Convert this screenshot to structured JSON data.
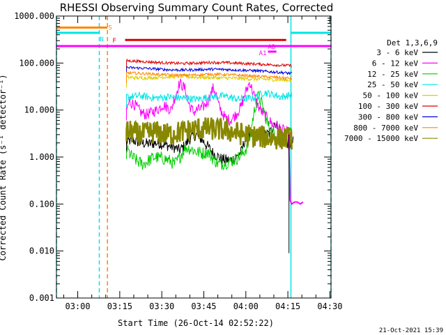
{
  "chart_data": {
    "type": "line",
    "title": "RHESSI Observing Summary Count Rates, Corrected",
    "xlabel": "Start Time (26-Oct-14 02:52:22)",
    "ylabel": "Corrected Count Rate (s⁻¹ detector⁻¹)",
    "y_scale": "log",
    "ylim": [
      0.001,
      1000
    ],
    "xlim_minutes_after_start": [
      0,
      98
    ],
    "x_tick_labels": [
      "03:00",
      "03:15",
      "03:30",
      "03:45",
      "04:00",
      "04:15",
      "04:30"
    ],
    "x_tick_minutes_after_start": [
      7.6,
      22.6,
      37.6,
      52.6,
      67.6,
      82.6,
      97.6
    ],
    "y_tick_labels": [
      "1000.000",
      "100.000",
      "10.000",
      "1.000",
      "0.100",
      "0.010",
      "0.001"
    ],
    "y_tick_values": [
      1000,
      100,
      10,
      1,
      0.1,
      0.01,
      0.001
    ],
    "legend_title": "Det 1,3,6,9",
    "legend_position": "right",
    "series": [
      {
        "name": "3 - 6 keV",
        "color": "#000000",
        "t": [
          25,
          27,
          30,
          33,
          36,
          39,
          42,
          44,
          45,
          46,
          47,
          48,
          50,
          53,
          56,
          59,
          62,
          64,
          66,
          67,
          68,
          70,
          71,
          72,
          74,
          76,
          77,
          78,
          80,
          82,
          83,
          84,
          84.5
        ],
        "y": [
          2.1,
          2.3,
          2.0,
          1.9,
          2.0,
          1.8,
          1.6,
          1.4,
          1.6,
          1.8,
          2.2,
          2.6,
          3.0,
          2.0,
          1.2,
          0.9,
          0.85,
          0.95,
          1.3,
          2.1,
          2.6,
          2.9,
          3.1,
          3.0,
          2.9,
          3.2,
          4.0,
          5.5,
          3.5,
          2.2,
          1.8,
          2.0,
          2.1
        ]
      },
      {
        "name": "6 - 12 keV",
        "color": "#ff00ff",
        "t": [
          25,
          26,
          28,
          30,
          32,
          34,
          36,
          38,
          40,
          41,
          42,
          44,
          46,
          47,
          48,
          49,
          50,
          52,
          54,
          56,
          57,
          58,
          60,
          62,
          64,
          66,
          67,
          68,
          69,
          70,
          72,
          74,
          76,
          77,
          78,
          80,
          82,
          83,
          84
        ],
        "y": [
          10,
          15,
          13,
          9,
          8,
          9,
          10,
          13,
          11,
          10,
          17,
          38,
          28,
          15,
          11,
          9,
          10,
          11,
          15,
          30,
          22,
          12,
          7,
          6,
          8,
          12,
          20,
          28,
          40,
          25,
          12,
          8,
          6,
          5,
          5,
          4,
          3.5,
          3,
          3
        ]
      },
      {
        "name": "12 - 25 keV",
        "color": "#00cc00",
        "t": [
          25,
          27,
          29,
          31,
          33,
          35,
          37,
          39,
          41,
          42,
          43,
          44,
          46,
          48,
          50,
          52,
          54,
          56,
          58,
          60,
          62,
          64,
          66,
          68,
          69,
          70,
          71,
          72,
          73,
          74,
          75,
          76,
          78,
          80,
          82,
          84
        ],
        "y": [
          1.5,
          1.0,
          0.8,
          0.7,
          0.85,
          1.0,
          0.95,
          0.9,
          0.8,
          0.7,
          0.8,
          1.0,
          1.6,
          1.5,
          1.3,
          1.2,
          1.3,
          0.9,
          0.7,
          0.75,
          0.8,
          0.9,
          1.1,
          1.6,
          2.5,
          6,
          12,
          20,
          15,
          10,
          6,
          4,
          3,
          3.2,
          3.0,
          3.1
        ]
      },
      {
        "name": "25 - 50 keV",
        "color": "#00e5e5",
        "t": [
          25,
          30,
          35,
          40,
          45,
          50,
          55,
          60,
          65,
          70,
          72,
          74,
          76,
          78,
          80,
          82,
          84
        ],
        "y": [
          19,
          20,
          18,
          19,
          18,
          17,
          19,
          20,
          17,
          18,
          20,
          24,
          22,
          21,
          19,
          20,
          21
        ]
      },
      {
        "name": "50 - 100 keV",
        "color": "#ddcc00",
        "t": [
          25,
          30,
          35,
          40,
          45,
          50,
          55,
          60,
          65,
          70,
          75,
          80,
          84
        ],
        "y": [
          50,
          48,
          49,
          51,
          52,
          50,
          49,
          48,
          47,
          46,
          45,
          44,
          43
        ]
      },
      {
        "name": "100 - 300 keV",
        "color": "#dd0000",
        "t": [
          25,
          30,
          35,
          40,
          45,
          50,
          55,
          60,
          65,
          70,
          75,
          80,
          84
        ],
        "y": [
          112,
          108,
          104,
          100,
          98,
          100,
          103,
          102,
          99,
          96,
          93,
          90,
          88
        ]
      },
      {
        "name": "300 - 800 keV",
        "color": "#0000dd",
        "t": [
          25,
          30,
          35,
          40,
          45,
          50,
          55,
          60,
          65,
          70,
          75,
          80,
          84
        ],
        "y": [
          80,
          78,
          75,
          72,
          71,
          72,
          74,
          73,
          71,
          69,
          66,
          63,
          60
        ]
      },
      {
        "name": "800 - 7000 keV",
        "color": "#ff8800",
        "t": [
          25,
          30,
          35,
          40,
          45,
          50,
          55,
          60,
          65,
          70,
          75,
          80,
          84
        ],
        "y": [
          62,
          60,
          58,
          56,
          55,
          56,
          58,
          57,
          55,
          53,
          51,
          49,
          47
        ]
      },
      {
        "name": "7000 - 15000 keV",
        "color": "#888800",
        "t": [
          25,
          30,
          35,
          40,
          45,
          50,
          55,
          60,
          65,
          70,
          75,
          80,
          84
        ],
        "y": [
          3.6,
          3.0,
          3.4,
          3.0,
          3.5,
          4.0,
          4.0,
          3.7,
          3.2,
          2.8,
          2.6,
          2.5,
          2.5
        ]
      }
    ],
    "status_bars": [
      {
        "name": "S",
        "color": "#ff8800",
        "level": 570,
        "segments": [
          [
            0,
            18.2
          ]
        ]
      },
      {
        "name": "N",
        "color": "#00e5e5",
        "level": 440,
        "segments": [
          [
            0,
            15.3
          ],
          [
            83.7,
            98
          ]
        ]
      },
      {
        "name": "F",
        "color": "#dd0000",
        "level": 310,
        "segments": [
          [
            24.5,
            82
          ]
        ]
      },
      {
        "name": "AD",
        "color": "#ff00ff",
        "level": 230,
        "segments": [
          [
            0,
            98
          ]
        ]
      },
      {
        "name": "A1",
        "color": "#ff00ff",
        "level": 175,
        "segments": [
          [
            75.5,
            78.5
          ]
        ]
      }
    ],
    "vertical_markers": [
      {
        "t": 0.0,
        "color": "#00e5e5",
        "style": "dashed"
      },
      {
        "t": 15.3,
        "color": "#00e5e5",
        "style": "dashed"
      },
      {
        "t": 18.2,
        "color": "#ff8800",
        "style": "dashed"
      },
      {
        "t": 83.7,
        "color": "#00e5e5",
        "style": "solid"
      },
      {
        "t": 98.0,
        "color": "#00e5e5",
        "style": "dashed"
      }
    ],
    "post_saa_6_12_keV": {
      "t": [
        83.4,
        84,
        85,
        86,
        87,
        88
      ],
      "y": [
        0.12,
        0.1,
        0.11,
        0.11,
        0.1,
        0.11
      ]
    },
    "footer_date": "21-Oct-2021 15:39"
  }
}
